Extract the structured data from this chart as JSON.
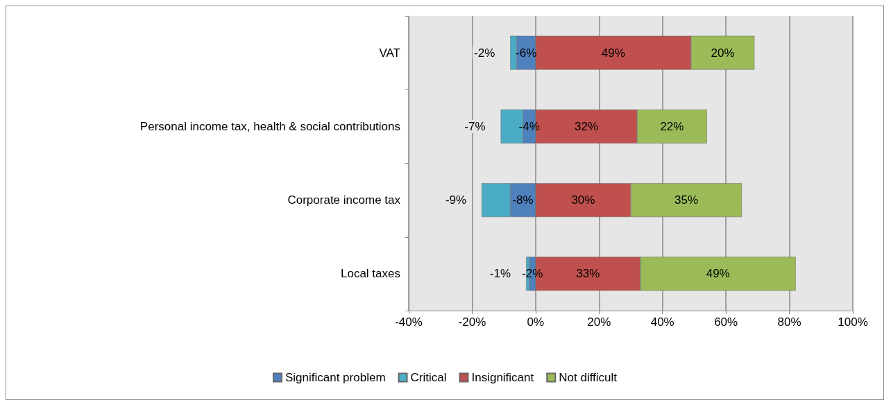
{
  "chart_data": {
    "type": "bar",
    "orientation": "horizontal",
    "stacked": true,
    "categories": [
      "VAT",
      "Personal income tax, health & social contributions",
      "Corporate income tax",
      "Local taxes"
    ],
    "series": [
      {
        "name": "Significant problem",
        "color": "#4f81bd",
        "values": [
          -6,
          -4,
          -8,
          -2
        ],
        "value_labels": [
          "-6%",
          "-4%",
          "-8%",
          "-2%"
        ]
      },
      {
        "name": "Critical",
        "color": "#4bacc6",
        "values": [
          -2,
          -7,
          -9,
          -1
        ],
        "value_labels": [
          "-2%",
          "-7%",
          "-9%",
          "-1%"
        ]
      },
      {
        "name": "Insignificant",
        "color": "#c0504d",
        "values": [
          49,
          32,
          30,
          33
        ],
        "value_labels": [
          "49%",
          "32%",
          "30%",
          "33%"
        ]
      },
      {
        "name": "Not difficult",
        "color": "#9bbb59",
        "values": [
          20,
          22,
          35,
          49
        ],
        "value_labels": [
          "20%",
          "22%",
          "35%",
          "49%"
        ]
      }
    ],
    "xlim": [
      -40,
      100
    ],
    "xticks": [
      {
        "value": -40,
        "label": "-40%"
      },
      {
        "value": -20,
        "label": "-20%"
      },
      {
        "value": 0,
        "label": "0%"
      },
      {
        "value": 20,
        "label": "20%"
      },
      {
        "value": 40,
        "label": "40%"
      },
      {
        "value": 60,
        "label": "60%"
      },
      {
        "value": 80,
        "label": "80%"
      },
      {
        "value": 100,
        "label": "100%"
      }
    ],
    "grid": "x",
    "legend": "bottom"
  }
}
